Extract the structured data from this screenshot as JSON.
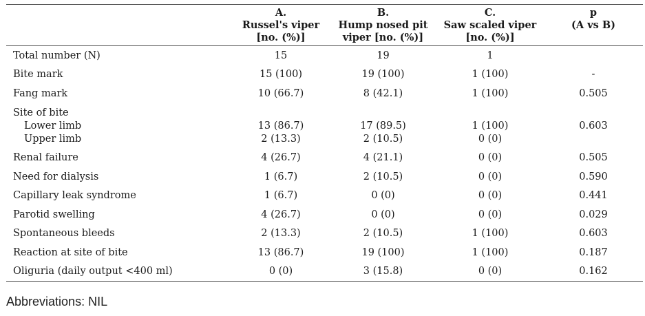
{
  "table": {
    "headers": [
      {
        "lines": [
          ""
        ]
      },
      {
        "lines": [
          "A.",
          "Russel's viper",
          "[no. (%)]"
        ]
      },
      {
        "lines": [
          "B.",
          "Hump nosed pit",
          "viper [no. (%)]"
        ]
      },
      {
        "lines": [
          "C.",
          "Saw scaled viper",
          "[no. (%)]"
        ]
      },
      {
        "lines": [
          "p",
          "(A vs B)"
        ]
      }
    ],
    "rows": [
      {
        "label": "Total number (N)",
        "a": "15",
        "b": "19",
        "c": "1",
        "p": ""
      },
      {
        "label": "Bite mark",
        "a": "15 (100)",
        "b": "19 (100)",
        "c": "1 (100)",
        "p": "-"
      },
      {
        "label": "Fang mark",
        "a": "10 (66.7)",
        "b": "8 (42.1)",
        "c": "1 (100)",
        "p": "0.505"
      }
    ],
    "site": {
      "label": "Site of bite",
      "sub": [
        {
          "label": "Lower limb",
          "a": "13 (86.7)",
          "b": "17 (89.5)",
          "c": "1 (100)",
          "p": "0.603"
        },
        {
          "label": "Upper limb",
          "a": "2 (13.3)",
          "b": "2 (10.5)",
          "c": "0 (0)",
          "p": ""
        }
      ]
    },
    "rows2": [
      {
        "label": "Renal failure",
        "a": "4 (26.7)",
        "b": "4 (21.1)",
        "c": "0 (0)",
        "p": "0.505"
      },
      {
        "label": "Need for dialysis",
        "a": "1 (6.7)",
        "b": "2 (10.5)",
        "c": "0 (0)",
        "p": "0.590"
      },
      {
        "label": "Capillary leak syndrome",
        "a": "1 (6.7)",
        "b": "0 (0)",
        "c": "0 (0)",
        "p": "0.441"
      },
      {
        "label": "Parotid swelling",
        "a": "4 (26.7)",
        "b": "0 (0)",
        "c": "0 (0)",
        "p": "0.029"
      },
      {
        "label": "Spontaneous bleeds",
        "a": "2 (13.3)",
        "b": "2 (10.5)",
        "c": "1 (100)",
        "p": "0.603"
      },
      {
        "label": "Reaction at site of bite",
        "a": "13 (86.7)",
        "b": "19 (100)",
        "c": "1 (100)",
        "p": "0.187"
      },
      {
        "label": "Oliguria (daily output <400 ml)",
        "a": "0 (0)",
        "b": "3 (15.8)",
        "c": "0 (0)",
        "p": "0.162"
      }
    ]
  },
  "footnote": "Abbreviations: NIL"
}
